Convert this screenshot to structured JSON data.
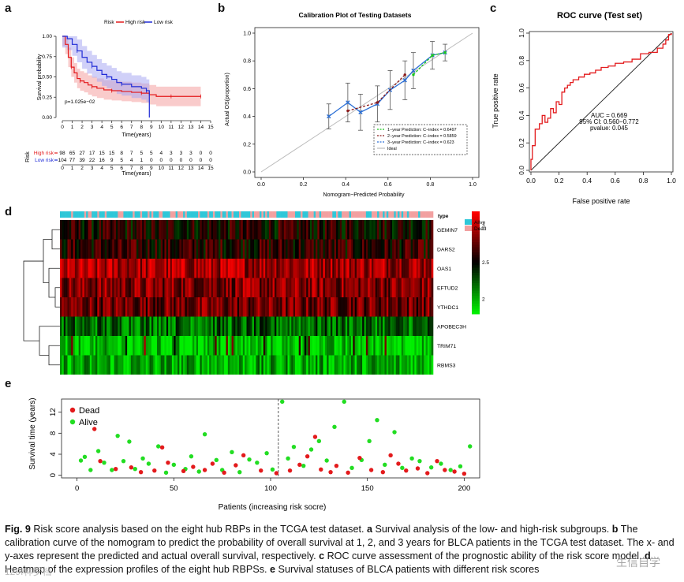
{
  "panels": {
    "a": {
      "label": "a",
      "legend_title": "Risk",
      "legend_high": "High risk",
      "legend_low": "Low risk",
      "ylabel": "Survival probability",
      "xlabel": "Time(years)",
      "pvalue": "p=1.025e−02",
      "table_ylabel": "Risk",
      "table_xlabel": "Time(years)",
      "colors": {
        "high": "#e31a1c",
        "low": "#1f2bd6",
        "high_fill": "#f4a0a0",
        "low_fill": "#a9a9f2"
      },
      "chart_data": {
        "type": "line",
        "title": "",
        "xlabel": "Time(years)",
        "ylabel": "Survival probability",
        "x_ticks": [
          "0",
          "1",
          "2",
          "3",
          "4",
          "5",
          "6",
          "7",
          "8",
          "9",
          "10",
          "11",
          "12",
          "13",
          "14",
          "15"
        ],
        "y_ticks": [
          "0.00",
          "0.25",
          "0.50",
          "0.75",
          "1.00"
        ],
        "xlim": [
          0,
          15
        ],
        "ylim": [
          0,
          1
        ],
        "series": [
          {
            "name": "High risk",
            "x": [
              0,
              0.3,
              0.6,
              0.9,
              1.2,
              1.5,
              1.8,
              2.2,
              2.6,
              3.0,
              3.5,
              4.2,
              5.0,
              6.0,
              7.0,
              8.0,
              8.8,
              9.5,
              11,
              12,
              13,
              14
            ],
            "y": [
              1.0,
              0.9,
              0.74,
              0.62,
              0.55,
              0.48,
              0.45,
              0.43,
              0.4,
              0.38,
              0.36,
              0.34,
              0.33,
              0.32,
              0.31,
              0.3,
              0.28,
              0.26,
              0.26,
              0.26,
              0.26,
              0.26
            ]
          },
          {
            "name": "Low risk",
            "x": [
              0,
              0.5,
              1.0,
              1.5,
              2.0,
              2.5,
              3.0,
              3.5,
              4.0,
              4.5,
              5.0,
              5.5,
              6.0,
              7.0,
              8.0,
              8.5,
              8.8
            ],
            "y": [
              1.0,
              0.97,
              0.9,
              0.82,
              0.74,
              0.68,
              0.63,
              0.58,
              0.53,
              0.5,
              0.47,
              0.43,
              0.41,
              0.38,
              0.36,
              0.33,
              0.0
            ]
          }
        ]
      },
      "risk_table": {
        "rows": [
          {
            "name": "High risk",
            "counts": [
              "98",
              "65",
              "27",
              "17",
              "15",
              "15",
              "8",
              "7",
              "5",
              "5",
              "4",
              "3",
              "3",
              "3",
              "0",
              "0"
            ]
          },
          {
            "name": "Low risk",
            "counts": [
              "104",
              "77",
              "39",
              "22",
              "16",
              "9",
              "5",
              "4",
              "1",
              "0",
              "0",
              "0",
              "0",
              "0",
              "0",
              "0"
            ]
          }
        ]
      }
    },
    "b": {
      "label": "b",
      "chart_data": {
        "type": "line",
        "title": "Calibration Plot of Testing Datasets",
        "xlabel": "Nomogram−Predicted Probability",
        "ylabel": "Actual OS(proportion)",
        "x_ticks": [
          "0.0",
          "0.2",
          "0.4",
          "0.6",
          "0.8",
          "1.0"
        ],
        "y_ticks": [
          "0.0",
          "0.2",
          "0.4",
          "0.6",
          "0.8",
          "1.0"
        ],
        "xlim": [
          0,
          1
        ],
        "ylim": [
          0,
          1
        ],
        "series": [
          {
            "name": "1−year Prediction: C−index = 0.6497",
            "color": "#19c81b",
            "x": [
              0.72,
              0.81,
              0.87
            ],
            "y": [
              0.7,
              0.84,
              0.86
            ]
          },
          {
            "name": "2−year Prediction: C−index = 0.5859",
            "color": "#8b1a1a",
            "x": [
              0.41,
              0.55,
              0.68
            ],
            "y": [
              0.44,
              0.5,
              0.7
            ]
          },
          {
            "name": "3−year Prediction: C−index = 0.623",
            "color": "#2b6fd6",
            "x": [
              0.32,
              0.41,
              0.47,
              0.55,
              0.61,
              0.68,
              0.72,
              0.81,
              0.87
            ],
            "y": [
              0.4,
              0.5,
              0.43,
              0.49,
              0.59,
              0.66,
              0.73,
              0.84,
              0.86
            ]
          },
          {
            "name": "Ideal",
            "color": "#bbbbbb",
            "x": [
              0,
              1
            ],
            "y": [
              0,
              1
            ]
          }
        ]
      }
    },
    "c": {
      "label": "c",
      "auc": "AUC = 0.669",
      "ci": "95% CI: 0.560−0.772",
      "pvalue": "pvalue: 0.045",
      "chart_data": {
        "type": "line",
        "title": "ROC curve (Test set)",
        "xlabel": "False positive rate",
        "ylabel": "True positive rate",
        "x_ticks": [
          "0.0",
          "0.2",
          "0.4",
          "0.6",
          "0.8",
          "1.0"
        ],
        "y_ticks": [
          "0.0",
          "0.2",
          "0.4",
          "0.6",
          "0.8",
          "1.0"
        ],
        "xlim": [
          0,
          1
        ],
        "ylim": [
          0,
          1
        ],
        "series": [
          {
            "name": "ROC",
            "x": [
              0,
              0,
              0.01,
              0.01,
              0.03,
              0.03,
              0.06,
              0.08,
              0.1,
              0.12,
              0.14,
              0.16,
              0.18,
              0.2,
              0.22,
              0.24,
              0.26,
              0.28,
              0.3,
              0.34,
              0.38,
              0.42,
              0.46,
              0.5,
              0.55,
              0.6,
              0.66,
              0.72,
              0.78,
              0.84,
              0.9,
              0.94,
              0.96,
              0.98,
              1.0
            ],
            "y": [
              0,
              0.08,
              0.12,
              0.18,
              0.2,
              0.3,
              0.34,
              0.4,
              0.35,
              0.38,
              0.45,
              0.42,
              0.5,
              0.48,
              0.57,
              0.6,
              0.62,
              0.64,
              0.66,
              0.68,
              0.7,
              0.71,
              0.73,
              0.75,
              0.76,
              0.78,
              0.79,
              0.81,
              0.85,
              0.86,
              0.89,
              0.92,
              0.95,
              0.99,
              1.0
            ]
          },
          {
            "name": "Reference",
            "x": [
              0,
              1
            ],
            "y": [
              0,
              1
            ]
          }
        ]
      }
    },
    "d": {
      "label": "d",
      "legend_type": "type",
      "legend_alive": "Alive",
      "legend_dead": "Dead",
      "colors": {
        "alive": "#2ec7d8",
        "dead": "#f2a0a0",
        "high": "#ff0000",
        "mid": "#000000",
        "low": "#00ee00"
      },
      "chart_data": {
        "type": "heatmap",
        "rows": [
          "GEMIN7",
          "DARS2",
          "OAS1",
          "EFTUD2",
          "YTHDC1",
          "APOBEC3H",
          "TRIM71",
          "RBMS3"
        ],
        "row_means": [
          2.55,
          2.6,
          2.95,
          2.85,
          2.8,
          2.2,
          1.9,
          2.0
        ],
        "scale_ticks": [
          "3",
          "2.5",
          "2"
        ],
        "scale_range": [
          1.8,
          3.2
        ]
      }
    },
    "e": {
      "label": "e",
      "legend_dead": "Dead",
      "legend_alive": "Alive",
      "colors": {
        "dead": "#e31a1c",
        "alive": "#22dd22"
      },
      "chart_data": {
        "type": "scatter",
        "xlabel": "Patients (increasing risk socre)",
        "ylabel": "Survival time (years)",
        "x_ticks": [
          "0",
          "50",
          "100",
          "150",
          "200"
        ],
        "y_ticks": [
          "0",
          "4",
          "8",
          "12"
        ],
        "xlim": [
          -8,
          208
        ],
        "ylim": [
          -0.5,
          14.5
        ],
        "cutoff": 104,
        "dead_points": [
          [
            9,
            8.8
          ],
          [
            12,
            2.7
          ],
          [
            20,
            1.2
          ],
          [
            28,
            1.5
          ],
          [
            33,
            0.6
          ],
          [
            40,
            0.9
          ],
          [
            44,
            5.3
          ],
          [
            47,
            2.4
          ],
          [
            55,
            0.8
          ],
          [
            60,
            1.6
          ],
          [
            66,
            1.0
          ],
          [
            70,
            2.2
          ],
          [
            76,
            0.5
          ],
          [
            82,
            1.9
          ],
          [
            86,
            3.8
          ],
          [
            95,
            0.9
          ],
          [
            103,
            0.4
          ],
          [
            110,
            0.9
          ],
          [
            115,
            2.0
          ],
          [
            119,
            3.6
          ],
          [
            123,
            7.3
          ],
          [
            126,
            1.1
          ],
          [
            131,
            0.6
          ],
          [
            134,
            1.8
          ],
          [
            140,
            0.5
          ],
          [
            146,
            3.3
          ],
          [
            152,
            1.0
          ],
          [
            158,
            0.6
          ],
          [
            162,
            3.8
          ],
          [
            166,
            2.2
          ],
          [
            170,
            0.9
          ],
          [
            176,
            1.3
          ],
          [
            181,
            0.4
          ],
          [
            186,
            2.7
          ],
          [
            190,
            1.0
          ],
          [
            195,
            0.7
          ],
          [
            200,
            0.3
          ]
        ],
        "alive_points": [
          [
            2,
            2.8
          ],
          [
            4,
            3.5
          ],
          [
            7,
            1.0
          ],
          [
            11,
            4.6
          ],
          [
            14,
            2.4
          ],
          [
            18,
            1.0
          ],
          [
            21,
            7.5
          ],
          [
            24,
            2.7
          ],
          [
            27,
            6.4
          ],
          [
            30,
            1.2
          ],
          [
            34,
            3.2
          ],
          [
            37,
            2.2
          ],
          [
            42,
            5.5
          ],
          [
            46,
            0.5
          ],
          [
            50,
            2.0
          ],
          [
            56,
            1.2
          ],
          [
            59,
            3.6
          ],
          [
            63,
            0.7
          ],
          [
            66,
            7.8
          ],
          [
            72,
            2.9
          ],
          [
            75,
            1.0
          ],
          [
            80,
            4.4
          ],
          [
            84,
            0.6
          ],
          [
            89,
            3.0
          ],
          [
            93,
            2.4
          ],
          [
            98,
            4.2
          ],
          [
            101,
            1.1
          ],
          [
            106,
            14.0
          ],
          [
            109,
            3.2
          ],
          [
            112,
            5.4
          ],
          [
            117,
            1.8
          ],
          [
            121,
            4.9
          ],
          [
            125,
            6.5
          ],
          [
            129,
            2.8
          ],
          [
            133,
            9.2
          ],
          [
            138,
            14.0
          ],
          [
            142,
            1.4
          ],
          [
            147,
            2.9
          ],
          [
            151,
            6.5
          ],
          [
            155,
            10.5
          ],
          [
            159,
            2.0
          ],
          [
            164,
            8.2
          ],
          [
            168,
            1.4
          ],
          [
            173,
            3.2
          ],
          [
            177,
            2.7
          ],
          [
            183,
            1.5
          ],
          [
            188,
            2.2
          ],
          [
            193,
            1.0
          ],
          [
            198,
            1.7
          ],
          [
            203,
            5.5
          ]
        ]
      }
    }
  },
  "caption": {
    "fig": "Fig. 9",
    "intro": " Risk score analysis based on the eight hub RBPs in the TCGA test dataset. ",
    "a_key": "a",
    "a_text": " Survival analysis of the low- and high-risk subgroups. ",
    "b_key": "b",
    "b_text": " The calibration curve of the nomogram to predict the probability of overall survival at 1, 2, and 3 years for BLCA patients in the TCGA test dataset. The x- and y-axes represent the predicted and actual overall survival, respectively. ",
    "c_key": "c",
    "c_text": " ROC curve assessment of the prognostic ability of the risk score model. ",
    "d_key": "d",
    "d_text": " Heatmap of the expression profiles of the eight hub RBPSs. ",
    "e_key": "e",
    "e_text": " Survival statuses of BLCA patients with different risk scores"
  },
  "watermark": "生信自学",
  "watermark2": "129Ⅰ林罗档"
}
